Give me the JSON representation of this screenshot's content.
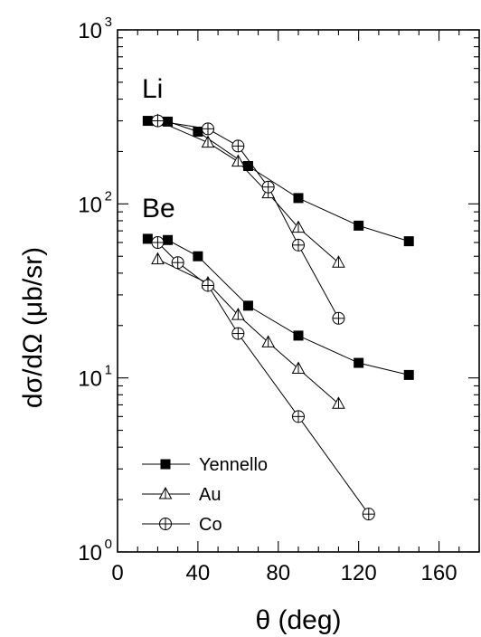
{
  "chart_data": {
    "type": "scatter",
    "xlabel": "θ (deg)",
    "ylabel": "dσ/dΩ (μb/sr)",
    "xlim": [
      0,
      180
    ],
    "ylim": [
      1,
      1000
    ],
    "yscale": "log",
    "x_ticks": [
      "0",
      "40",
      "80",
      "120",
      "160"
    ],
    "y_ticks": [
      {
        "base": "10",
        "exp": "0"
      },
      {
        "base": "10",
        "exp": "1"
      },
      {
        "base": "10",
        "exp": "2"
      },
      {
        "base": "10",
        "exp": "3"
      }
    ],
    "annotations": {
      "li": "Li",
      "be": "Be"
    },
    "legend_position": "bottom-left",
    "series": [
      {
        "name": "Yennello",
        "marker": "filled-square",
        "group": "Li",
        "x": [
          15,
          25,
          40,
          65,
          90,
          120,
          145
        ],
        "y": [
          300,
          297,
          260,
          165,
          108,
          75,
          61
        ]
      },
      {
        "name": "Au",
        "marker": "open-triangle",
        "group": "Li",
        "x": [
          20,
          45,
          60,
          75,
          90,
          110
        ],
        "y": [
          300,
          225,
          175,
          115,
          73,
          46
        ]
      },
      {
        "name": "Co",
        "marker": "circle-plus",
        "group": "Li",
        "x": [
          20,
          45,
          60,
          75,
          90,
          110
        ],
        "y": [
          300,
          270,
          215,
          125,
          58,
          22
        ]
      },
      {
        "name": "Yennello",
        "marker": "filled-square",
        "group": "Be",
        "x": [
          15,
          25,
          40,
          65,
          90,
          120,
          145
        ],
        "y": [
          63,
          62,
          50,
          26,
          17.5,
          12.2,
          10.4
        ]
      },
      {
        "name": "Au",
        "marker": "open-triangle",
        "group": "Be",
        "x": [
          20,
          45,
          60,
          75,
          90,
          110
        ],
        "y": [
          48,
          35,
          23,
          16,
          11.3,
          7.1
        ]
      },
      {
        "name": "Co",
        "marker": "circle-plus",
        "group": "Be",
        "x": [
          20,
          30,
          45,
          60,
          90,
          125
        ],
        "y": [
          60,
          46,
          34,
          18,
          6,
          1.65
        ]
      }
    ],
    "legend": [
      {
        "label": "Yennello",
        "marker": "filled-square"
      },
      {
        "label": "Au",
        "marker": "open-triangle"
      },
      {
        "label": "Co",
        "marker": "circle-plus"
      }
    ]
  }
}
